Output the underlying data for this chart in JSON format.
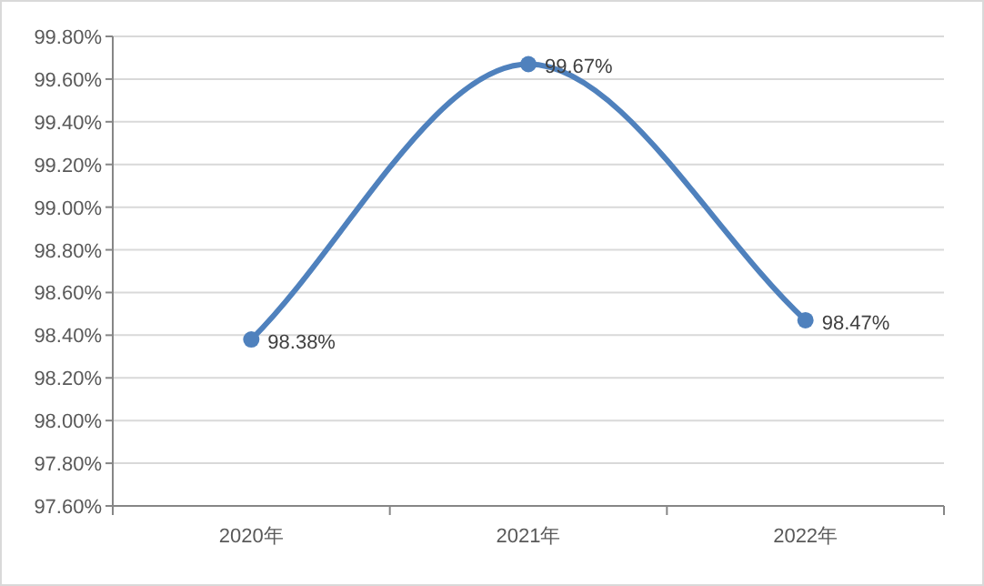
{
  "chart_data": {
    "type": "line",
    "categories": [
      "2020年",
      "2021年",
      "2022年"
    ],
    "series": [
      {
        "color": "#4f81bd",
        "values": [
          98.38,
          99.67,
          98.47
        ],
        "value_labels": [
          "98.38%",
          "99.67%",
          "98.47%"
        ]
      }
    ],
    "ylim": [
      97.6,
      99.8
    ],
    "yticks": [
      {
        "value": 97.6,
        "label": "97.60%"
      },
      {
        "value": 97.8,
        "label": "97.80%"
      },
      {
        "value": 98.0,
        "label": "98.00%"
      },
      {
        "value": 98.2,
        "label": "98.20%"
      },
      {
        "value": 98.4,
        "label": "98.40%"
      },
      {
        "value": 98.6,
        "label": "98.60%"
      },
      {
        "value": 98.8,
        "label": "98.80%"
      },
      {
        "value": 99.0,
        "label": "99.00%"
      },
      {
        "value": 99.2,
        "label": "99.20%"
      },
      {
        "value": 99.4,
        "label": "99.40%"
      },
      {
        "value": 99.6,
        "label": "99.60%"
      },
      {
        "value": 99.8,
        "label": "99.80%"
      }
    ],
    "grid": "y",
    "marker": "circle",
    "line_style": "solid"
  }
}
